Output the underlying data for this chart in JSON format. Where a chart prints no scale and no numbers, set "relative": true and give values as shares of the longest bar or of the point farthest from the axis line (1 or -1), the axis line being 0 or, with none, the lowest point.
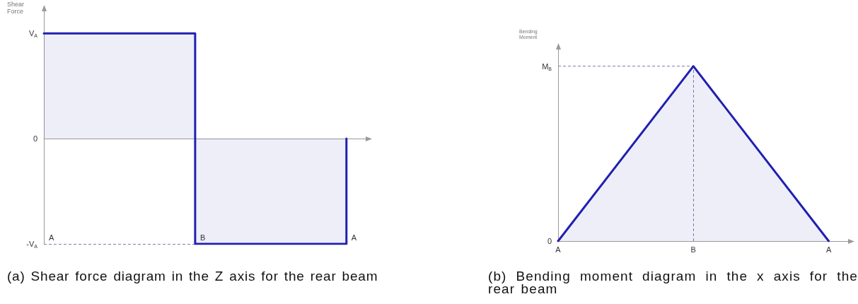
{
  "chart_data": [
    {
      "type": "step",
      "relative": true,
      "categories": [
        "A",
        "B",
        "A"
      ],
      "values": [
        1,
        -1,
        0
      ],
      "color": "#2020b0",
      "ylabel": "Shear Force",
      "ref_lines": [
        {
          "axis": "y",
          "value": -1,
          "color": "#7d82a6",
          "line_style": "dashed"
        }
      ],
      "annotations": [
        "V$_{A}$",
        "0",
        "-V$_{A}$",
        "(a) Shear force diagram in the Z axis for the rear beam"
      ]
    },
    {
      "type": "area",
      "relative": true,
      "categories": [
        "A",
        "B",
        "A"
      ],
      "values": [
        0,
        1,
        0
      ],
      "color": "#2020b0",
      "ylabel": "Bending Moment",
      "ref_lines": [
        {
          "axis": "y",
          "value": 1,
          "color": "#7d82a6",
          "line_style": "dashed"
        },
        {
          "axis": "x",
          "value": "B",
          "color": "#7d82a6",
          "line_style": "dashed"
        }
      ],
      "annotations": [
        "M$_{B}$",
        "0",
        "(b) Bending moment diagram in the x axis for the rear beam"
      ]
    }
  ]
}
